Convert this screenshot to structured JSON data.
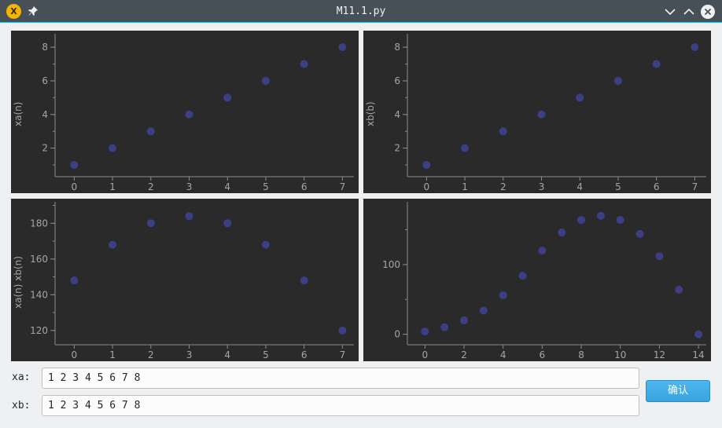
{
  "window": {
    "title": "M11.1.py",
    "app_icon_letter": "X"
  },
  "inputs": {
    "xa": {
      "label": "xa:",
      "value": "1 2 3 4 5 6 7 8"
    },
    "xb": {
      "label": "xb:",
      "value": "1 2 3 4 5 6 7 8"
    }
  },
  "confirm_button": {
    "label": "确认"
  },
  "colors": {
    "plot_bg": "#2a2a2a",
    "marker": "#3d3f86",
    "axis": "#8c8c8c",
    "accent": "#3daee9"
  },
  "chart_data": [
    {
      "type": "scatter",
      "ylabel": "xa(n)",
      "x": [
        0,
        1,
        2,
        3,
        4,
        5,
        6,
        7
      ],
      "y": [
        1,
        2,
        3,
        4,
        5,
        6,
        7,
        8
      ],
      "xlim": [
        -0.5,
        7.3
      ],
      "ylim": [
        0.3,
        8.8
      ],
      "xticks": [
        0,
        1,
        2,
        3,
        4,
        5,
        6,
        7
      ],
      "yticks": [
        2,
        4,
        6,
        8
      ]
    },
    {
      "type": "scatter",
      "ylabel": "xb(b)",
      "x": [
        0,
        1,
        2,
        3,
        4,
        5,
        6,
        7
      ],
      "y": [
        1,
        2,
        3,
        4,
        5,
        6,
        7,
        8
      ],
      "xlim": [
        -0.5,
        7.3
      ],
      "ylim": [
        0.3,
        8.8
      ],
      "xticks": [
        0,
        1,
        2,
        3,
        4,
        5,
        6,
        7
      ],
      "yticks": [
        2,
        4,
        6,
        8
      ]
    },
    {
      "type": "scatter",
      "ylabel": "xa(n) xb(n)",
      "x": [
        0,
        1,
        2,
        3,
        4,
        5,
        6,
        7
      ],
      "y": [
        148,
        168,
        180,
        184,
        180,
        168,
        148,
        120
      ],
      "xlim": [
        -0.5,
        7.3
      ],
      "ylim": [
        112,
        192
      ],
      "xticks": [
        0,
        1,
        2,
        3,
        4,
        5,
        6,
        7
      ],
      "yticks": [
        120,
        140,
        160,
        180
      ]
    },
    {
      "type": "scatter",
      "ylabel": "",
      "x": [
        0,
        1,
        2,
        3,
        4,
        5,
        6,
        7,
        8,
        9,
        10,
        11,
        12,
        13,
        14
      ],
      "y": [
        4,
        10,
        20,
        34,
        56,
        84,
        120,
        146,
        164,
        170,
        164,
        144,
        112,
        64,
        0
      ],
      "xlim": [
        -0.9,
        14.4
      ],
      "ylim": [
        -15,
        190
      ],
      "xticks": [
        0,
        2,
        4,
        6,
        8,
        10,
        12,
        14
      ],
      "yticks": [
        0,
        100
      ]
    }
  ]
}
